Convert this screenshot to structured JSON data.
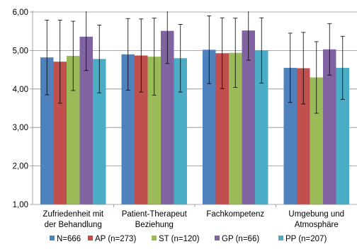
{
  "chart_data": {
    "type": "bar",
    "title": "",
    "xlabel": "",
    "ylabel": "",
    "ylim": [
      1,
      6
    ],
    "yticks": [
      "1,00",
      "2,00",
      "3,00",
      "4,00",
      "5,00",
      "6,00"
    ],
    "categories": [
      [
        "Zufriedenheit mit",
        "der Behandlung"
      ],
      [
        "Patient-Therapeut",
        "Beziehung"
      ],
      [
        "Fachkompetenz"
      ],
      [
        "Umgebung und",
        "Atmosphäre"
      ]
    ],
    "series": [
      {
        "name": "N=666",
        "color": "#4f81bd",
        "values": [
          4.82,
          4.9,
          5.02,
          4.55
        ],
        "error": [
          0.97,
          0.93,
          0.88,
          0.9
        ]
      },
      {
        "name": "AP (n=273)",
        "color": "#c0504d",
        "values": [
          4.71,
          4.87,
          4.93,
          4.54
        ],
        "error": [
          1.08,
          0.95,
          0.92,
          0.93
        ]
      },
      {
        "name": "ST (n=120)",
        "color": "#9bbb59",
        "values": [
          4.86,
          4.84,
          4.94,
          4.3
        ],
        "error": [
          0.9,
          1.0,
          0.9,
          0.93
        ]
      },
      {
        "name": "GP (n=66)",
        "color": "#8064a2",
        "values": [
          5.36,
          5.51,
          5.52,
          5.03
        ],
        "error": [
          0.88,
          0.85,
          0.77,
          0.67
        ]
      },
      {
        "name": "PP (n=207)",
        "color": "#4bacc6",
        "values": [
          4.78,
          4.8,
          5.0,
          4.55
        ],
        "error": [
          0.88,
          0.88,
          0.85,
          0.82
        ]
      }
    ],
    "grid": "horizontal",
    "legend": "bottom"
  }
}
